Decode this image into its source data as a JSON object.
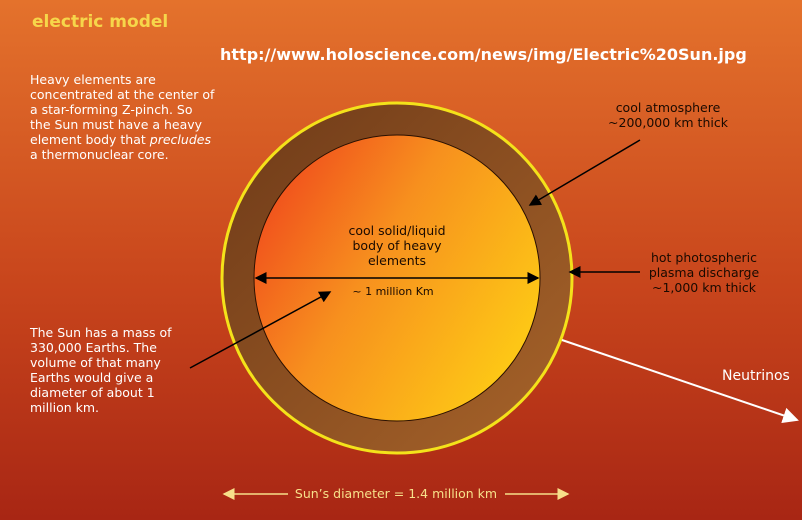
{
  "header": {
    "title": "electric model",
    "url": "http://www.holoscience.com/news/img/Electric%20Sun.jpg"
  },
  "notes": {
    "top_left": {
      "lines": [
        "Heavy elements are",
        "concentrated at the center of",
        "a star-forming Z-pinch. So",
        "the Sun must have a heavy",
        [
          "element body that",
          "precludes"
        ],
        "a thermonuclear core."
      ]
    },
    "bottom_left": {
      "lines": [
        "The Sun has a mass of",
        "330,000 Earths. The",
        "volume of that many",
        "Earths would give a",
        "diameter of about 1",
        "million km."
      ]
    }
  },
  "labels": {
    "atmosphere": [
      "cool atmosphere",
      "~200,000 km thick"
    ],
    "core": [
      "cool solid/liquid",
      "body of heavy",
      "elements"
    ],
    "core_width": "~ 1 million Km",
    "photosphere": [
      "hot photospheric",
      "plasma discharge",
      "~1,000 km thick"
    ],
    "neutrinos": "Neutrinos",
    "diameter": "Sun’s diameter = 1.4 million km"
  }
}
